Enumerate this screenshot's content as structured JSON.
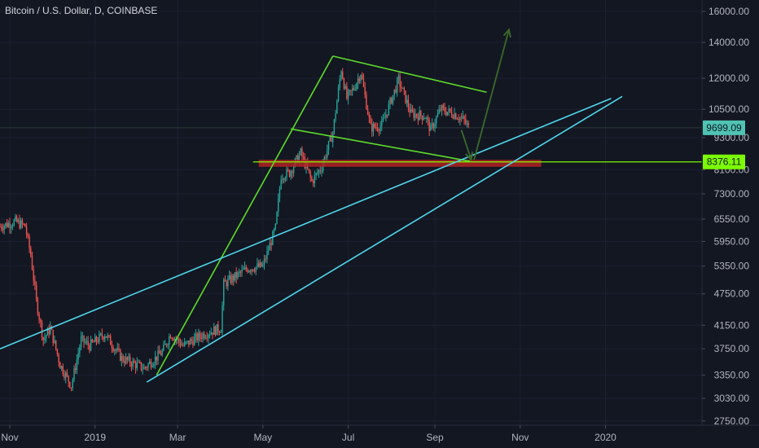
{
  "header": {
    "symbol": "Bitcoin / U.S. Dollar, D, COINBASE"
  },
  "price_axis": {
    "labels": [
      "16000.00",
      "14000.00",
      "12000.00",
      "10500.00",
      "9300.00",
      "8100.00",
      "7300.00",
      "6550.00",
      "5950.00",
      "5350.00",
      "4750.00",
      "4150.00",
      "3750.00",
      "3350.00",
      "3030.00",
      "2750.00"
    ]
  },
  "time_axis": {
    "labels": [
      "Nov",
      "2019",
      "Mar",
      "May",
      "Jul",
      "Sep",
      "Nov",
      "2020"
    ]
  },
  "badges": {
    "last_price": "9699.09",
    "level": "8376.11"
  },
  "colors": {
    "background": "#131722",
    "up": "#26a69a",
    "down": "#ef5350",
    "trend_green": "#5ddd2b",
    "trend_cyan": "#4fd6ec",
    "support_zone": "#b22222",
    "forecast_arrow": "#3a6b2a",
    "last_price_badge": "#4fc3b3",
    "level_badge": "#7cfc00"
  },
  "chart_data": {
    "type": "candlestick",
    "title": "Bitcoin / U.S. Dollar, D, COINBASE",
    "scale": "log",
    "x_range": [
      "2018-10-25",
      "2020-03-10"
    ],
    "y_range": [
      2700,
      16800
    ],
    "last_price": 9699.09,
    "horizontal_level": 8376.11,
    "path_points": [
      {
        "date": "2018-10-25",
        "price": 6350
      },
      {
        "date": "2018-11-05",
        "price": 6480
      },
      {
        "date": "2018-11-12",
        "price": 6350
      },
      {
        "date": "2018-11-16",
        "price": 5600
      },
      {
        "date": "2018-11-20",
        "price": 4600
      },
      {
        "date": "2018-11-25",
        "price": 3900
      },
      {
        "date": "2018-11-30",
        "price": 4100
      },
      {
        "date": "2018-12-07",
        "price": 3500
      },
      {
        "date": "2018-12-15",
        "price": 3200
      },
      {
        "date": "2018-12-22",
        "price": 3900
      },
      {
        "date": "2018-12-28",
        "price": 3800
      },
      {
        "date": "2019-01-08",
        "price": 4000
      },
      {
        "date": "2019-01-20",
        "price": 3600
      },
      {
        "date": "2019-02-05",
        "price": 3450
      },
      {
        "date": "2019-02-18",
        "price": 3700
      },
      {
        "date": "2019-02-24",
        "price": 4000
      },
      {
        "date": "2019-03-05",
        "price": 3800
      },
      {
        "date": "2019-03-20",
        "price": 4000
      },
      {
        "date": "2019-04-01",
        "price": 4100
      },
      {
        "date": "2019-04-03",
        "price": 4950
      },
      {
        "date": "2019-04-20",
        "price": 5300
      },
      {
        "date": "2019-05-01",
        "price": 5350
      },
      {
        "date": "2019-05-10",
        "price": 6300
      },
      {
        "date": "2019-05-14",
        "price": 7900
      },
      {
        "date": "2019-05-20",
        "price": 8000
      },
      {
        "date": "2019-05-28",
        "price": 8700
      },
      {
        "date": "2019-06-05",
        "price": 7700
      },
      {
        "date": "2019-06-12",
        "price": 8200
      },
      {
        "date": "2019-06-20",
        "price": 9500
      },
      {
        "date": "2019-06-26",
        "price": 12500
      },
      {
        "date": "2019-06-30",
        "price": 11000
      },
      {
        "date": "2019-07-05",
        "price": 11500
      },
      {
        "date": "2019-07-10",
        "price": 12300
      },
      {
        "date": "2019-07-17",
        "price": 9700
      },
      {
        "date": "2019-07-25",
        "price": 9800
      },
      {
        "date": "2019-08-06",
        "price": 11900
      },
      {
        "date": "2019-08-15",
        "price": 10300
      },
      {
        "date": "2019-08-25",
        "price": 10200
      },
      {
        "date": "2019-08-29",
        "price": 9600
      },
      {
        "date": "2019-09-05",
        "price": 10500
      },
      {
        "date": "2019-09-15",
        "price": 10300
      },
      {
        "date": "2019-09-22",
        "price": 10000
      },
      {
        "date": "2019-09-25",
        "price": 9699
      }
    ],
    "trendlines": [
      {
        "color": "green",
        "from": {
          "date": "2019-02-14",
          "price": 3350
        },
        "to": {
          "date": "2019-06-20",
          "price": 13200
        }
      },
      {
        "color": "green",
        "from": {
          "date": "2019-06-20",
          "price": 13200
        },
        "to": {
          "date": "2019-10-08",
          "price": 11300
        }
      },
      {
        "color": "green",
        "from": {
          "date": "2019-05-21",
          "price": 9650
        },
        "to": {
          "date": "2019-09-26",
          "price": 8400
        }
      },
      {
        "color": "cyan",
        "from": {
          "date": "2018-10-25",
          "price": 3750
        },
        "to": {
          "date": "2020-01-05",
          "price": 11000
        }
      },
      {
        "color": "cyan",
        "from": {
          "date": "2019-02-07",
          "price": 3250
        },
        "to": {
          "date": "2020-01-13",
          "price": 11100
        }
      }
    ],
    "support_zone": {
      "from": "2019-04-28",
      "to": "2019-11-16",
      "price_low": 8200,
      "price_high": 8450
    },
    "forecast_arrows": [
      {
        "from": {
          "date": "2019-09-20",
          "price": 9600
        },
        "to": {
          "date": "2019-09-27",
          "price": 8450
        }
      },
      {
        "from": {
          "date": "2019-09-29",
          "price": 8450
        },
        "to": {
          "date": "2019-10-24",
          "price": 14800
        }
      }
    ]
  }
}
